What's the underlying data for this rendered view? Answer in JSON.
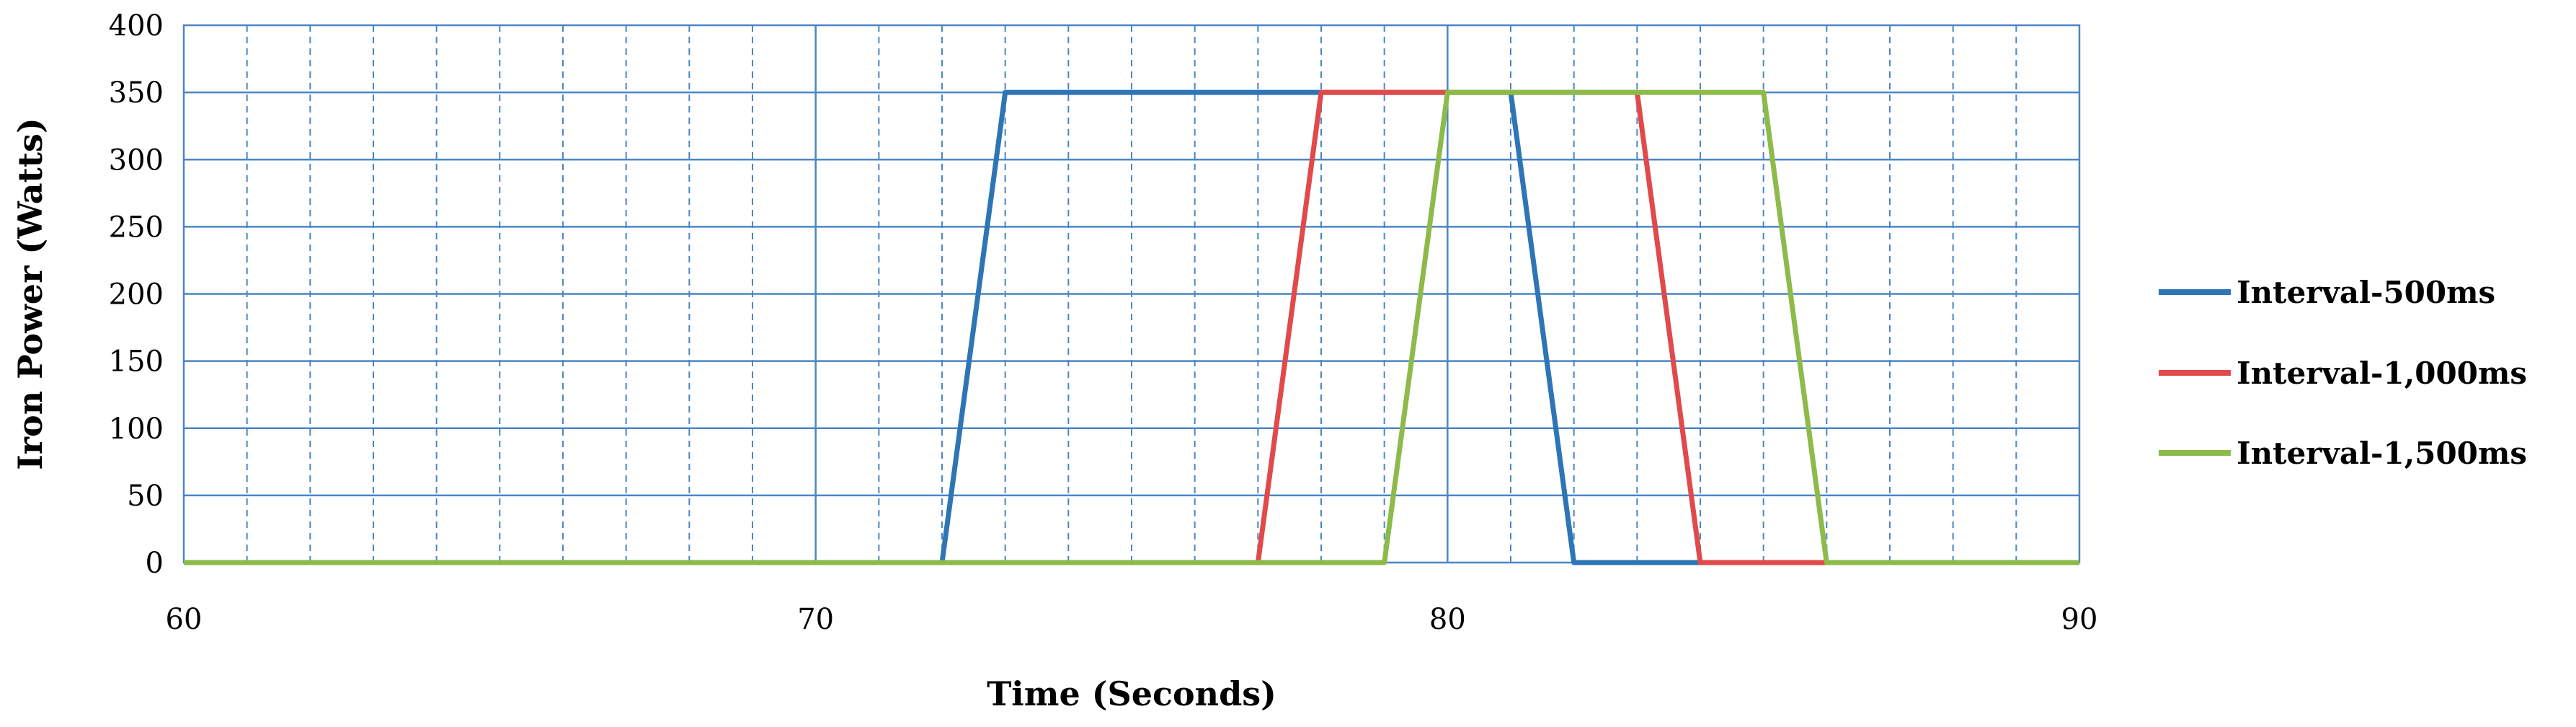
{
  "chart_data": {
    "type": "line",
    "title": "",
    "xlabel": "Time (Seconds)",
    "ylabel": "Iron Power (Watts)",
    "xlim": [
      60,
      90
    ],
    "ylim": [
      0,
      400
    ],
    "x_major_ticks": [
      60,
      70,
      80,
      90
    ],
    "x_minor_step": 1,
    "y_ticks": [
      0,
      50,
      100,
      150,
      200,
      250,
      300,
      350,
      400
    ],
    "grid": true,
    "legend_position": "right",
    "series": [
      {
        "name": "Interval-500ms",
        "color": "#2E75B6",
        "x": [
          60,
          72,
          73,
          81,
          82,
          90
        ],
        "y": [
          0,
          0,
          350,
          350,
          0,
          0
        ]
      },
      {
        "name": "Interval-1,000ms",
        "color": "#E04A4A",
        "x": [
          60,
          77,
          78,
          83,
          84,
          90
        ],
        "y": [
          0,
          0,
          350,
          350,
          0,
          0
        ]
      },
      {
        "name": "Interval-1,500ms",
        "color": "#8DBB4A",
        "x": [
          60,
          79,
          80,
          85,
          86,
          90
        ],
        "y": [
          0,
          0,
          350,
          350,
          0,
          0
        ]
      }
    ]
  }
}
